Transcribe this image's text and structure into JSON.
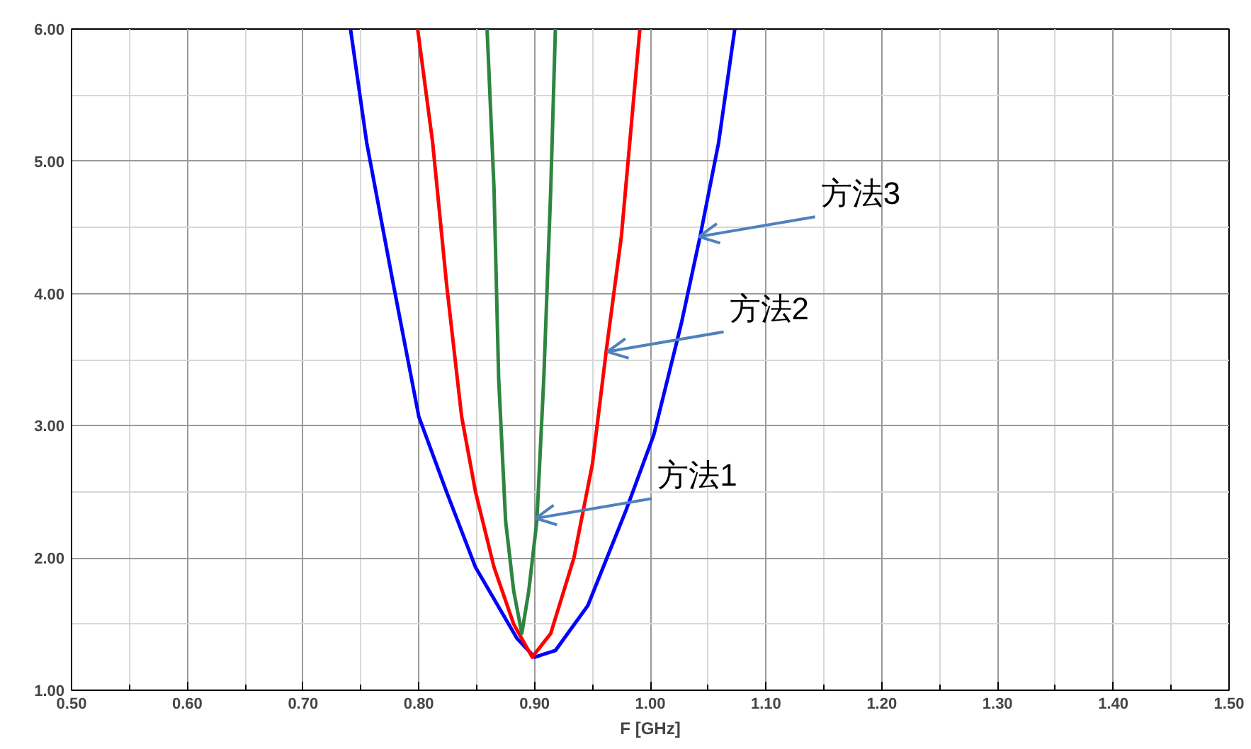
{
  "chart_data": {
    "type": "line",
    "xlabel": "F [GHz]",
    "xlim": [
      0.5,
      1.5
    ],
    "ylim": [
      1.0,
      6.0
    ],
    "xticks": [
      {
        "value": 0.5,
        "label": "0.50"
      },
      {
        "value": 0.6,
        "label": "0.60"
      },
      {
        "value": 0.7,
        "label": "0.70"
      },
      {
        "value": 0.8,
        "label": "0.80"
      },
      {
        "value": 0.9,
        "label": "0.90"
      },
      {
        "value": 1.0,
        "label": "1.00"
      },
      {
        "value": 1.1,
        "label": "1.10"
      },
      {
        "value": 1.2,
        "label": "1.20"
      },
      {
        "value": 1.3,
        "label": "1.30"
      },
      {
        "value": 1.4,
        "label": "1.40"
      },
      {
        "value": 1.5,
        "label": "1.50"
      }
    ],
    "yticks": [
      {
        "value": 1,
        "label": "1.00"
      },
      {
        "value": 2,
        "label": "2.00"
      },
      {
        "value": 3,
        "label": "3.00"
      },
      {
        "value": 4,
        "label": "4.00"
      },
      {
        "value": 5,
        "label": "5.00"
      },
      {
        "value": 6,
        "label": "6.00"
      }
    ],
    "grid": true,
    "marker": "none",
    "line_style": "solid",
    "series": [
      {
        "color": "#0000ff",
        "x": [
          0.741,
          0.755,
          0.778,
          0.8,
          0.824,
          0.849,
          0.885,
          0.9,
          0.918,
          0.946,
          0.979,
          1.003,
          1.027,
          1.043,
          1.059,
          1.073
        ],
        "values": [
          6.0,
          5.14,
          4.07,
          3.07,
          2.5,
          1.93,
          1.39,
          1.25,
          1.3,
          1.64,
          2.36,
          2.93,
          3.78,
          4.43,
          5.14,
          6.0
        ]
      },
      {
        "color": "#ff0000",
        "x": [
          0.799,
          0.812,
          0.824,
          0.837,
          0.849,
          0.865,
          0.882,
          0.898,
          0.914,
          0.934,
          0.95,
          0.962,
          0.975,
          0.991
        ],
        "values": [
          6.0,
          5.14,
          4.07,
          3.07,
          2.5,
          1.93,
          1.5,
          1.25,
          1.43,
          2.0,
          2.71,
          3.57,
          4.43,
          6.0
        ]
      },
      {
        "color": "#2e8540",
        "x": [
          0.859,
          0.865,
          0.869,
          0.875,
          0.882,
          0.889,
          0.895,
          0.902,
          0.908,
          0.914,
          0.918
        ],
        "values": [
          6.0,
          4.79,
          3.36,
          2.28,
          1.75,
          1.43,
          1.75,
          2.28,
          3.36,
          4.79,
          6.0
        ]
      }
    ],
    "annotations": [
      {
        "text": "方法3",
        "x": 1.042,
        "y": 4.43
      },
      {
        "text": "方法2",
        "x": 0.963,
        "y": 3.56
      },
      {
        "text": "方法1",
        "x": 0.901,
        "y": 2.3
      }
    ]
  }
}
